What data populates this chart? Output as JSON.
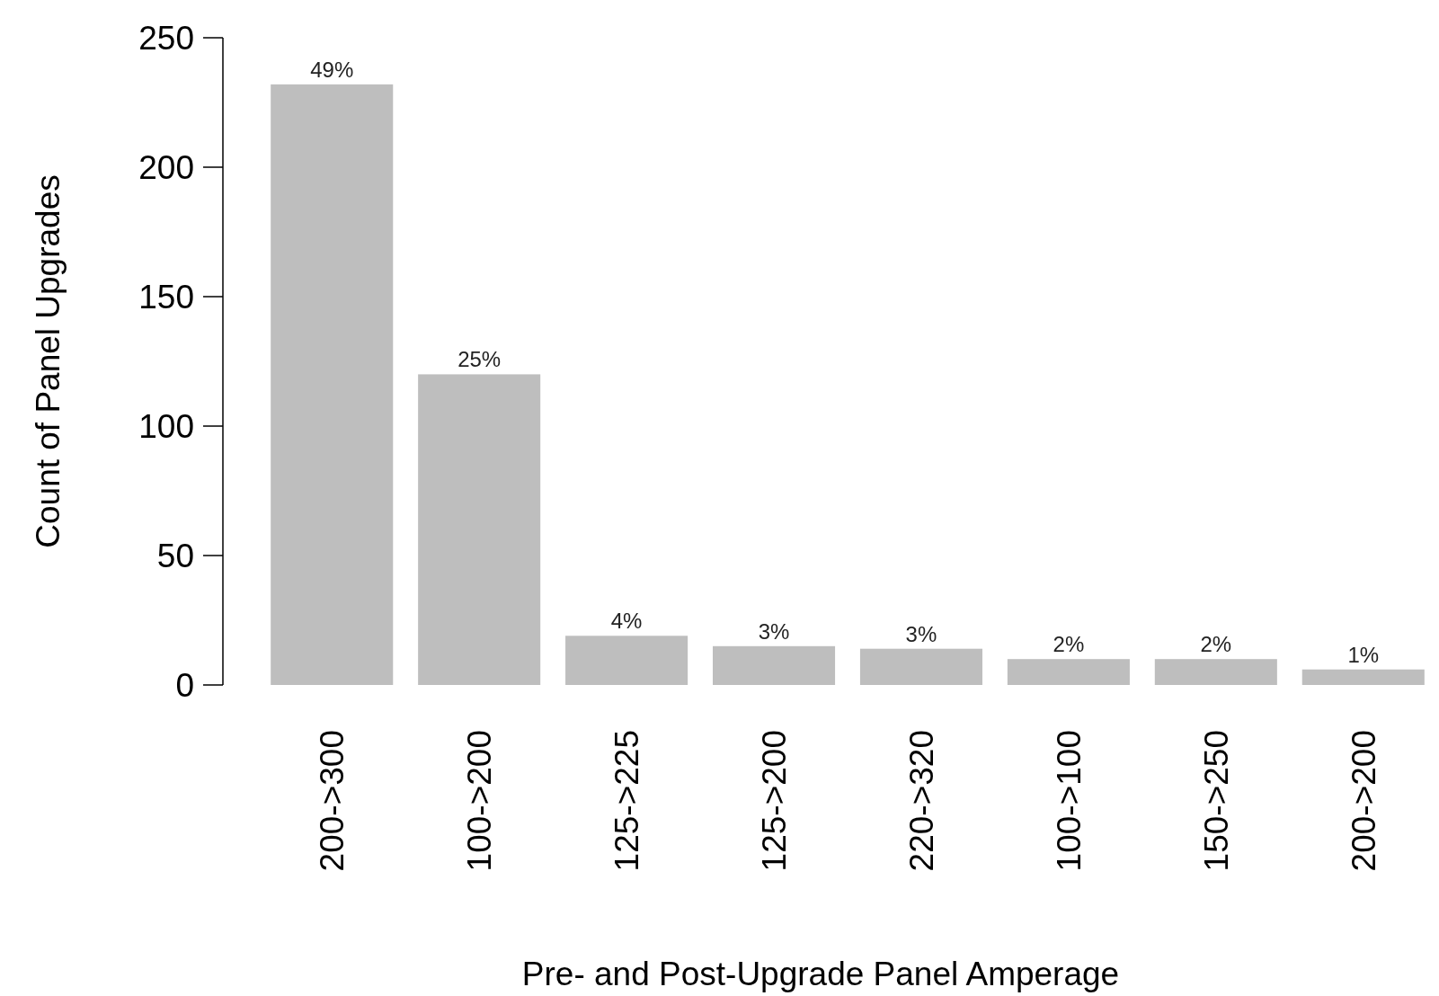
{
  "chart_data": {
    "type": "bar",
    "xlabel": "Pre- and Post-Upgrade Panel Amperage",
    "ylabel": "Count of Panel Upgrades",
    "categories": [
      "200->300",
      "100->200",
      "125->225",
      "125->200",
      "220->320",
      "100->100",
      "150->250",
      "200->200"
    ],
    "values": [
      232,
      120,
      19,
      15,
      14,
      10,
      10,
      6
    ],
    "annotations": [
      {
        "text": "49%",
        "x": "200->300",
        "y": 232
      },
      {
        "text": "25%",
        "x": "100->200",
        "y": 120
      },
      {
        "text": "4%",
        "x": "125->225",
        "y": 19
      },
      {
        "text": "3%",
        "x": "125->200",
        "y": 15
      },
      {
        "text": "3%",
        "x": "220->320",
        "y": 14
      },
      {
        "text": "2%",
        "x": "100->100",
        "y": 10
      },
      {
        "text": "2%",
        "x": "150->250",
        "y": 10
      },
      {
        "text": "1%",
        "x": "200->200",
        "y": 6
      }
    ],
    "color": "#bebebe",
    "ylim": [
      0,
      250
    ],
    "yticks": [
      0,
      50,
      100,
      150,
      200,
      250
    ],
    "grid": false
  }
}
